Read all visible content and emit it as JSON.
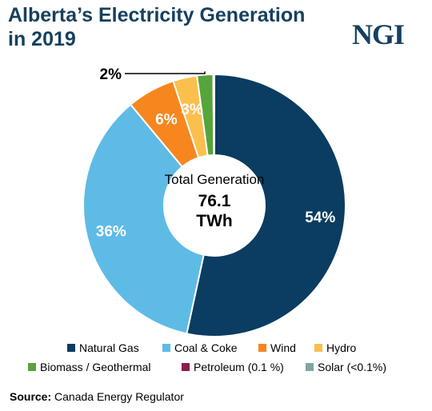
{
  "header": {
    "title": "Alberta’s Electricity Generation\nin 2019",
    "logo_text": "NGI"
  },
  "chart_data": {
    "type": "pie",
    "title": "Alberta’s Electricity Generation in 2019",
    "center_label": "Total Generation",
    "center_value": "76.1",
    "center_unit": "TWh",
    "slices": [
      {
        "name": "Natural Gas",
        "value": 54,
        "label": "54%",
        "color": "#0b3c61"
      },
      {
        "name": "Coal & Coke",
        "value": 36,
        "label": "36%",
        "color": "#5ebbe6"
      },
      {
        "name": "Wind",
        "value": 6,
        "label": "6%",
        "color": "#f7861f"
      },
      {
        "name": "Hydro",
        "value": 3,
        "label": "3%",
        "color": "#fbbf4e"
      },
      {
        "name": "Biomass / Geothermal",
        "value": 2,
        "label": "2%",
        "color": "#56a43b"
      },
      {
        "name": "Petroleum (0.1 %)",
        "value": 0.1,
        "label": "",
        "color": "#8b1d4f"
      },
      {
        "name": "Solar (<0.1%)",
        "value": 0.05,
        "label": "",
        "color": "#7fa69e"
      }
    ],
    "legend": "bottom"
  },
  "footer": {
    "source_label": "Source:",
    "source_text": "Canada Energy Regulator"
  }
}
